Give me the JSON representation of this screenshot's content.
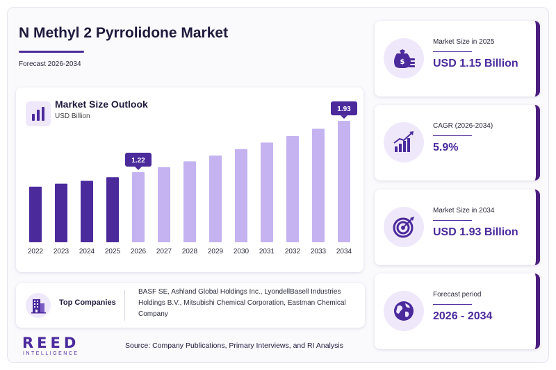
{
  "header": {
    "title": "N Methyl 2 Pyrrolidone Market",
    "subtitle": "Forecast 2026-2034"
  },
  "chart_data": {
    "type": "bar",
    "title": "Market Size Outlook",
    "unit": "USD Billion",
    "categories": [
      "2022",
      "2023",
      "2024",
      "2025",
      "2026",
      "2027",
      "2028",
      "2029",
      "2030",
      "2031",
      "2032",
      "2033",
      "2034"
    ],
    "values": [
      1.02,
      1.06,
      1.1,
      1.15,
      1.22,
      1.29,
      1.37,
      1.45,
      1.54,
      1.63,
      1.72,
      1.82,
      1.93
    ],
    "historical_color": "#4b2a9c",
    "forecast_color": "#c4b3f0",
    "forecast_start": "2026",
    "callouts": [
      {
        "category": "2026",
        "label": "1.22"
      },
      {
        "category": "2034",
        "label": "1.93"
      }
    ],
    "ylim": [
      0.25,
      2.2
    ]
  },
  "companies": {
    "label": "Top Companies",
    "text": "BASF SE, Ashland Global Holdings Inc., LyondellBasell Industries Holdings B.V., Mitsubishi Chemical Corporation, Eastman Chemical Company"
  },
  "footer": {
    "logo_main": "REED",
    "logo_sub": "INTELLIGENCE",
    "source": "Source: Company Publications, Primary Interviews, and RI Analysis"
  },
  "kpis": [
    {
      "label": "Market Size in 2025",
      "value": "USD 1.15 Billion",
      "icon": "money-bag-icon"
    },
    {
      "label": "CAGR (2026-2034)",
      "value": "5.9%",
      "icon": "growth-chart-icon"
    },
    {
      "label": "Market Size in 2034",
      "value": "USD 1.93 Billion",
      "icon": "target-icon"
    },
    {
      "label": "Forecast period",
      "value": "2026 - 2034",
      "icon": "globe-icon"
    }
  ],
  "colors": {
    "accent": "#4b2a9c",
    "accent_dark": "#4b1d7e",
    "accent_light": "#efe8fb"
  }
}
